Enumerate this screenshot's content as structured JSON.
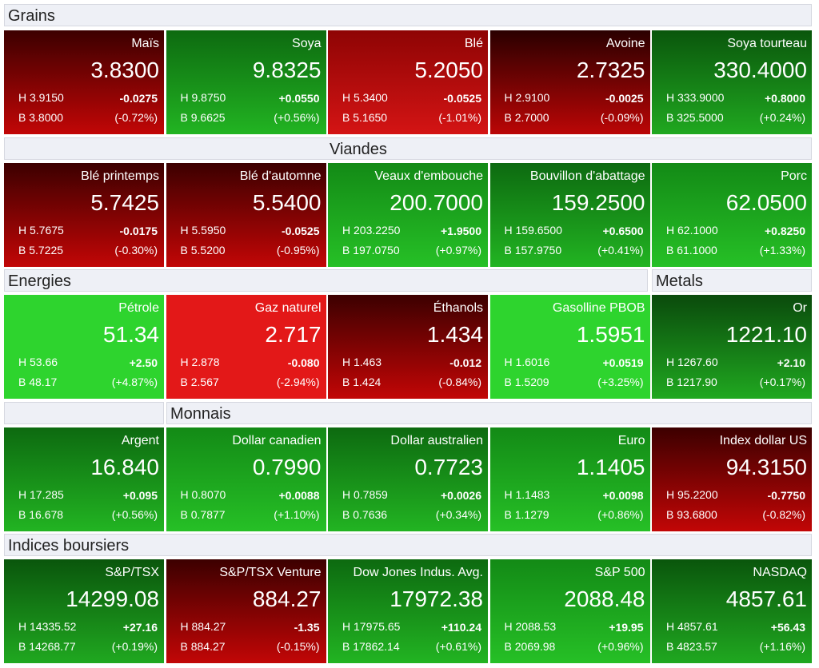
{
  "rows": [
    {
      "headers": [
        "Grains"
      ],
      "tiles": [
        {
          "name": "Maïs",
          "price": "3.8300",
          "high": "H 3.9150",
          "change": "-0.0275",
          "low": "B 3.8000",
          "pct": "(-0.72%)",
          "color": [
            "#3c0000",
            "#c20606"
          ]
        },
        {
          "name": "Soya",
          "price": "9.8325",
          "high": "H 9.8750",
          "change": "+0.0550",
          "low": "B 9.6625",
          "pct": "(+0.56%)",
          "color": [
            "#0d6a10",
            "#22b422"
          ]
        },
        {
          "name": "Blé",
          "price": "5.2050",
          "high": "H 5.3400",
          "change": "-0.0525",
          "low": "B 5.1650",
          "pct": "(-1.01%)",
          "color": [
            "#8e0404",
            "#d41414"
          ]
        },
        {
          "name": "Avoine",
          "price": "2.7325",
          "high": "H 2.9100",
          "change": "-0.0025",
          "low": "B 2.7000",
          "pct": "(-0.09%)",
          "color": [
            "#2a0000",
            "#bb0606"
          ]
        },
        {
          "name": "Soya tourteau",
          "price": "330.4000",
          "high": "H 333.9000",
          "change": "+0.8000",
          "low": "B 325.5000",
          "pct": "(+0.24%)",
          "color": [
            "#0a560c",
            "#20a820"
          ]
        }
      ]
    },
    {
      "headers": [
        "Viandes"
      ],
      "tiles": [
        {
          "name": "Blé printemps",
          "price": "5.7425",
          "high": "H 5.7675",
          "change": "-0.0175",
          "low": "B 5.7225",
          "pct": "(-0.30%)",
          "color": [
            "#3c0000",
            "#c20606"
          ]
        },
        {
          "name": "Blé d'automne",
          "price": "5.5400",
          "high": "H 5.5950",
          "change": "-0.0525",
          "low": "B 5.5200",
          "pct": "(-0.95%)",
          "color": [
            "#3c0000",
            "#c20606"
          ]
        },
        {
          "name": "Veaux d'embouche",
          "price": "200.7000",
          "high": "H 203.2250",
          "change": "+1.9500",
          "low": "B 197.0750",
          "pct": "(+0.97%)",
          "color": [
            "#138a16",
            "#26c026"
          ]
        },
        {
          "name": "Bouvillon d'abattage",
          "price": "159.2500",
          "high": "H 159.6500",
          "change": "+0.6500",
          "low": "B 157.9750",
          "pct": "(+0.41%)",
          "color": [
            "#0d6a10",
            "#22b422"
          ]
        },
        {
          "name": "Porc",
          "price": "62.0500",
          "high": "H 62.1000",
          "change": "+0.8250",
          "low": "B 61.1000",
          "pct": "(+1.33%)",
          "color": [
            "#138a16",
            "#26c026"
          ]
        }
      ]
    },
    {
      "headers": [
        "Energies",
        "Metals"
      ],
      "tiles": [
        {
          "name": "Pétrole",
          "price": "51.34",
          "high": "H 53.66",
          "change": "+2.50",
          "low": "B 48.17",
          "pct": "(+4.87%)",
          "color": [
            "#2ed42e",
            "#2ed42e"
          ]
        },
        {
          "name": "Gaz naturel",
          "price": "2.717",
          "high": "H 2.878",
          "change": "-0.080",
          "low": "B 2.567",
          "pct": "(-2.94%)",
          "color": [
            "#e31818",
            "#e31818"
          ]
        },
        {
          "name": "Éthanols",
          "price": "1.434",
          "high": "H 1.463",
          "change": "-0.012",
          "low": "B 1.424",
          "pct": "(-0.84%)",
          "color": [
            "#3c0000",
            "#c20606"
          ]
        },
        {
          "name": "Gasolline PBOB",
          "price": "1.5951",
          "high": "H 1.6016",
          "change": "+0.0519",
          "low": "B 1.5209",
          "pct": "(+3.25%)",
          "color": [
            "#2ed42e",
            "#2ed42e"
          ]
        },
        {
          "name": "Or",
          "price": "1221.10",
          "high": "H 1267.60",
          "change": "+2.10",
          "low": "B 1217.90",
          "pct": "(+0.17%)",
          "color": [
            "#0a4a0c",
            "#20a820"
          ]
        }
      ]
    },
    {
      "headers": [
        "Monnais"
      ],
      "tiles": [
        {
          "name": "Argent",
          "price": "16.840",
          "high": "H 17.285",
          "change": "+0.095",
          "low": "B 16.678",
          "pct": "(+0.56%)",
          "color": [
            "#0d6a10",
            "#22b422"
          ]
        },
        {
          "name": "Dollar canadien",
          "price": "0.7990",
          "high": "H 0.8070",
          "change": "+0.0088",
          "low": "B 0.7877",
          "pct": "(+1.10%)",
          "color": [
            "#138a16",
            "#26c026"
          ]
        },
        {
          "name": "Dollar australien",
          "price": "0.7723",
          "high": "H 0.7859",
          "change": "+0.0026",
          "low": "B 0.7636",
          "pct": "(+0.34%)",
          "color": [
            "#0d6a10",
            "#22b422"
          ]
        },
        {
          "name": "Euro",
          "price": "1.1405",
          "high": "H 1.1483",
          "change": "+0.0098",
          "low": "B 1.1279",
          "pct": "(+0.86%)",
          "color": [
            "#138a16",
            "#26c026"
          ]
        },
        {
          "name": "Index dollar US",
          "price": "94.3150",
          "high": "H 95.2200",
          "change": "-0.7750",
          "low": "B 93.6800",
          "pct": "(-0.82%)",
          "color": [
            "#3c0000",
            "#c20606"
          ]
        }
      ]
    },
    {
      "headers": [
        "Indices boursiers"
      ],
      "tiles": [
        {
          "name": "S&P/TSX",
          "price": "14299.08",
          "high": "H 14335.52",
          "change": "+27.16",
          "low": "B 14268.77",
          "pct": "(+0.19%)",
          "color": [
            "#0a560c",
            "#20a820"
          ]
        },
        {
          "name": "S&P/TSX Venture",
          "price": "884.27",
          "high": "H 884.27",
          "change": "-1.35",
          "low": "B 884.27",
          "pct": "(-0.15%)",
          "color": [
            "#3c0000",
            "#c20606"
          ]
        },
        {
          "name": "Dow Jones Indus. Avg.",
          "price": "17972.38",
          "high": "H 17975.65",
          "change": "+110.24",
          "low": "B 17862.14",
          "pct": "(+0.61%)",
          "color": [
            "#0d6a10",
            "#22b422"
          ]
        },
        {
          "name": "S&P 500",
          "price": "2088.48",
          "high": "H 2088.53",
          "change": "+19.95",
          "low": "B 2069.98",
          "pct": "(+0.96%)",
          "color": [
            "#138a16",
            "#26c026"
          ]
        },
        {
          "name": "NASDAQ",
          "price": "4857.61",
          "high": "H 4857.61",
          "change": "+56.43",
          "low": "B 4823.57",
          "pct": "(+1.16%)",
          "color": [
            "#0a560c",
            "#20a820"
          ]
        }
      ]
    }
  ]
}
